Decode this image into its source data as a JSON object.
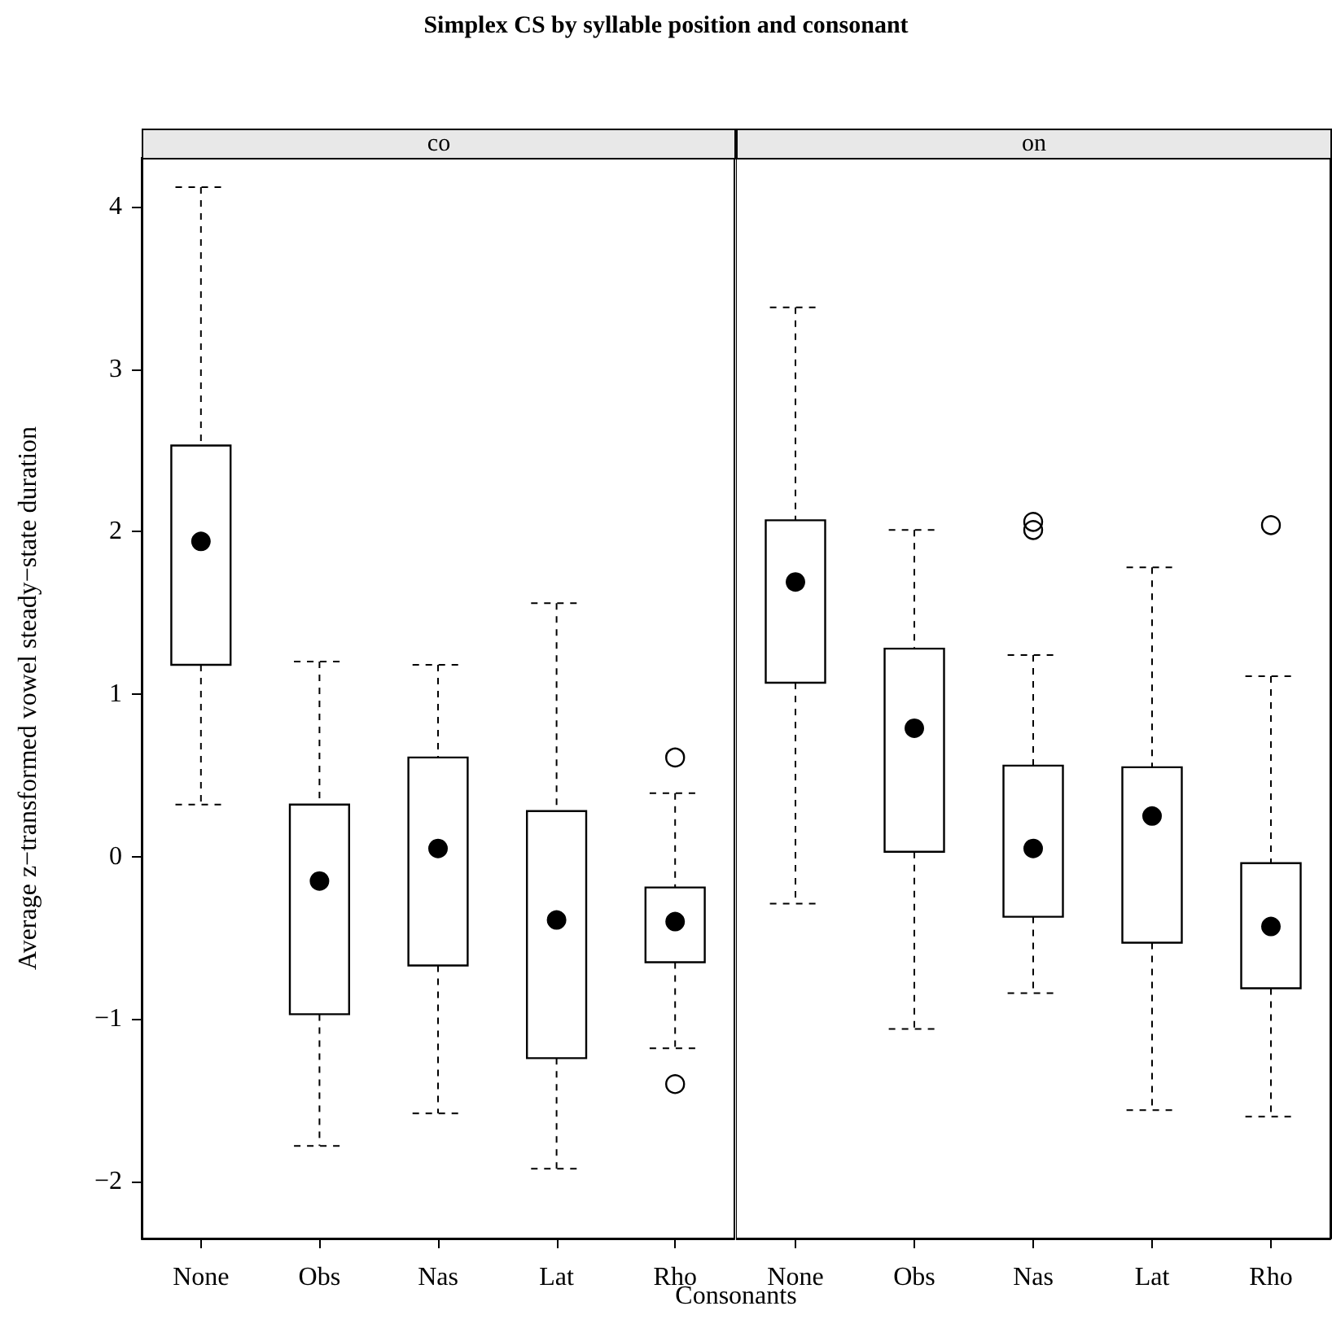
{
  "chart_data": [
    {
      "type": "box",
      "title": "Simplex CS by syllable position and consonant",
      "subtitle": "co",
      "xlabel": "Consonants",
      "ylabel": "Average z−transformed vowel steady−state duration",
      "categories": [
        "None",
        "Obs",
        "Nas",
        "Lat",
        "Rho"
      ],
      "ylim": [
        -2.35,
        4.3
      ],
      "yticks": [
        -2,
        -1,
        0,
        1,
        2,
        3,
        4
      ],
      "marker": "circle",
      "line_style": "dashed",
      "color": "#000000",
      "boxes": [
        {
          "low": 0.32,
          "q1": 1.18,
          "median": 1.94,
          "q3": 2.53,
          "high": 4.12
        },
        {
          "low": -1.78,
          "q1": -0.97,
          "median": -0.15,
          "q3": 0.32,
          "high": 1.2
        },
        {
          "low": -1.58,
          "q1": -0.67,
          "median": 0.05,
          "q3": 0.61,
          "high": 1.18
        },
        {
          "low": -1.92,
          "q1": -1.24,
          "median": -0.39,
          "q3": 0.28,
          "high": 1.56
        },
        {
          "low": -1.18,
          "q1": -0.65,
          "median": -0.4,
          "q3": -0.19,
          "high": 0.39,
          "outliers": [
            0.61,
            -1.4
          ]
        }
      ]
    },
    {
      "type": "box",
      "subtitle": "on",
      "categories": [
        "None",
        "Obs",
        "Nas",
        "Lat",
        "Rho"
      ],
      "ylim": [
        -2.35,
        4.3
      ],
      "yticks": [
        -2,
        -1,
        0,
        1,
        2,
        3,
        4
      ],
      "tick_labels": "x",
      "marker": "circle",
      "line_style": "dashed",
      "color": "#000000",
      "boxes": [
        {
          "low": -0.29,
          "q1": 1.07,
          "median": 1.69,
          "q3": 2.07,
          "high": 3.38
        },
        {
          "low": -1.06,
          "q1": 0.03,
          "median": 0.79,
          "q3": 1.28,
          "high": 2.01
        },
        {
          "low": -0.84,
          "q1": -0.37,
          "median": 0.05,
          "q3": 0.56,
          "high": 1.24,
          "outliers": [
            2.06,
            2.01
          ]
        },
        {
          "low": -1.56,
          "q1": -0.53,
          "median": 0.25,
          "q3": 0.55,
          "high": 1.78
        },
        {
          "low": -1.6,
          "q1": -0.81,
          "median": -0.43,
          "q3": -0.04,
          "high": 1.11,
          "outliers": [
            2.04
          ]
        }
      ]
    }
  ]
}
